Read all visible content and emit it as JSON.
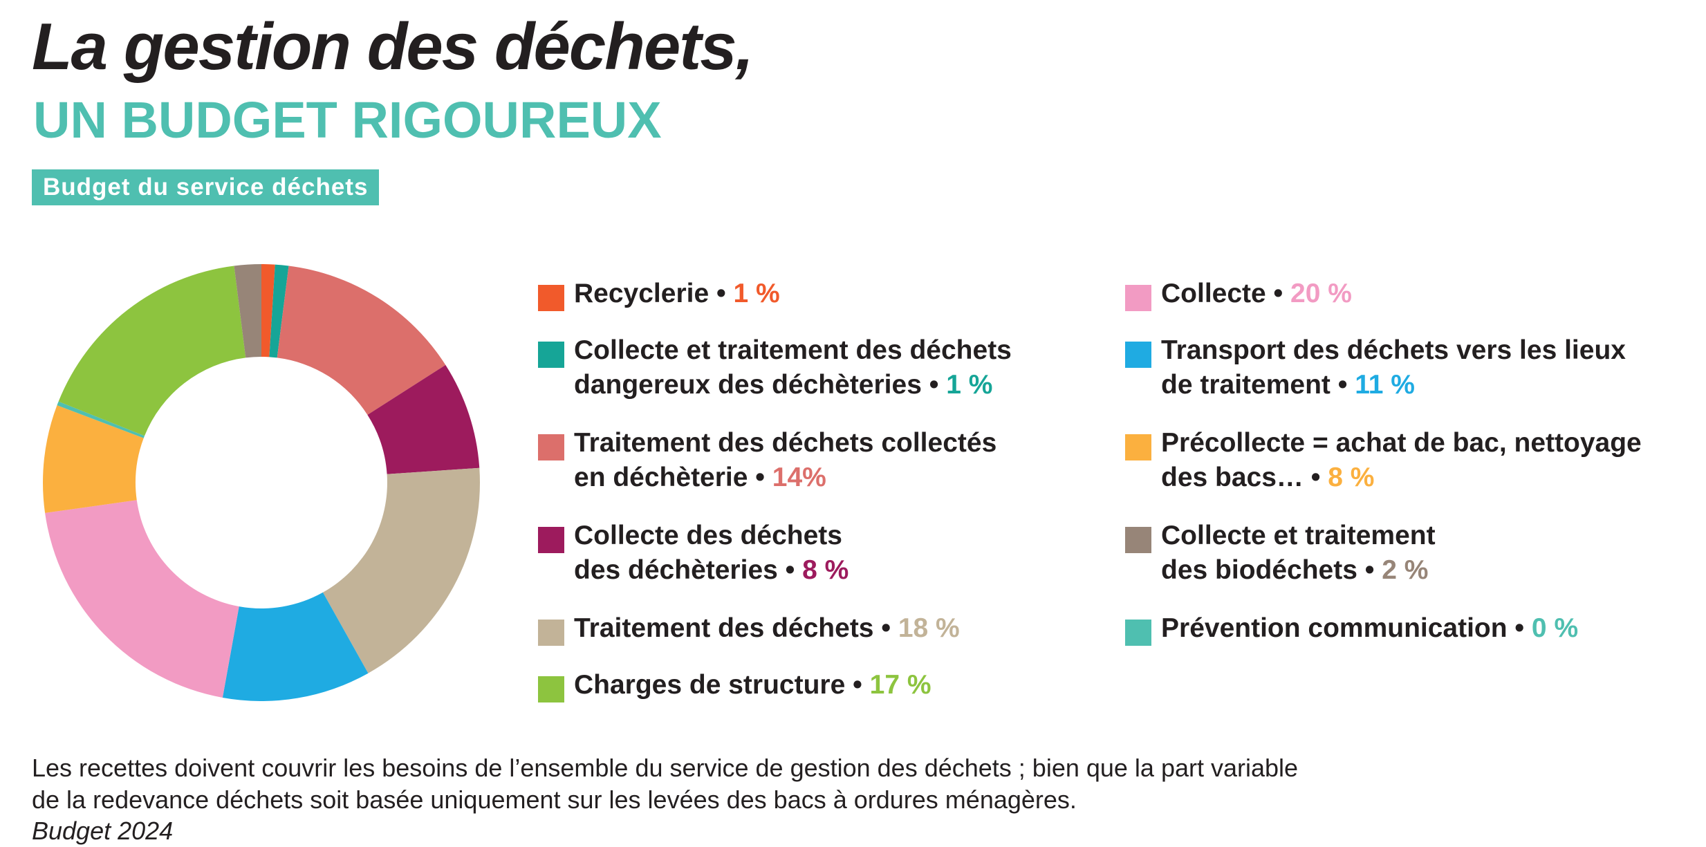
{
  "header": {
    "title": "La gestion des déchets,",
    "subtitle": "UN BUDGET RIGOUREUX",
    "badge": "Budget du service déchets"
  },
  "colors": {
    "accent": "#4fbfb0",
    "text": "#231f20"
  },
  "chart_data": {
    "type": "pie",
    "style": "donut",
    "title": "Budget du service déchets",
    "unit": "%",
    "legend_position": "right",
    "slices": [
      {
        "name": "Recyclerie",
        "label_lines": [
          "Recyclerie"
        ],
        "value": 1,
        "pct_label": "1 %",
        "color": "#f15a2b"
      },
      {
        "name": "Collecte et traitement des déchets dangereux des déchèteries",
        "label_lines": [
          "Collecte et traitement des déchets",
          "dangereux des déchèteries"
        ],
        "value": 1,
        "pct_label": "1 %",
        "color": "#16a597"
      },
      {
        "name": "Traitement des déchets collectés en déchèterie",
        "label_lines": [
          "Traitement des déchets collectés",
          "en déchèterie"
        ],
        "value": 14,
        "pct_label": "14%",
        "color": "#dc6f6b"
      },
      {
        "name": "Collecte des déchets des déchèteries",
        "label_lines": [
          "Collecte des déchets",
          "des déchèteries"
        ],
        "value": 8,
        "pct_label": "8 %",
        "color": "#9d1b5d"
      },
      {
        "name": "Traitement des déchets",
        "label_lines": [
          "Traitement des déchets"
        ],
        "value": 18,
        "pct_label": "18 %",
        "color": "#c2b398"
      },
      {
        "name": "Transport des déchets vers les lieux de traitement",
        "label_lines": [
          "Transport des déchets vers les lieux",
          "de traitement"
        ],
        "value": 11,
        "pct_label": "11 %",
        "color": "#1fabe2"
      },
      {
        "name": "Collecte",
        "label_lines": [
          "Collecte"
        ],
        "value": 20,
        "pct_label": "20 %",
        "color": "#f29bc3"
      },
      {
        "name": "Précollecte = achat de bac, nettoyage des bacs…",
        "label_lines": [
          "Précollecte = achat de bac, nettoyage",
          "des bacs…"
        ],
        "value": 8,
        "pct_label": "8 %",
        "color": "#fbb03f"
      },
      {
        "name": "Prévention communication",
        "label_lines": [
          "Prévention communication"
        ],
        "value": 0.3,
        "pct_label": "0 %",
        "color": "#4fbfb0"
      },
      {
        "name": "Charges de structure",
        "label_lines": [
          "Charges de structure"
        ],
        "value": 17,
        "pct_label": "17 %",
        "color": "#8dc43f"
      },
      {
        "name": "Collecte et traitement des biodéchets",
        "label_lines": [
          "Collecte et traitement",
          "des biodéchets"
        ],
        "value": 2,
        "pct_label": "2 %",
        "color": "#978578"
      }
    ],
    "legend_left": [
      0,
      1,
      2,
      3,
      4,
      9
    ],
    "legend_right": [
      6,
      5,
      7,
      10,
      8
    ]
  },
  "footer": {
    "note_line1": "Les recettes doivent couvrir les besoins de l’ensemble du service de gestion des déchets ; bien que la part variable",
    "note_line2": "de la redevance déchets soit basée uniquement sur les levées des bacs à ordures ménagères.",
    "source": "Budget 2024"
  }
}
